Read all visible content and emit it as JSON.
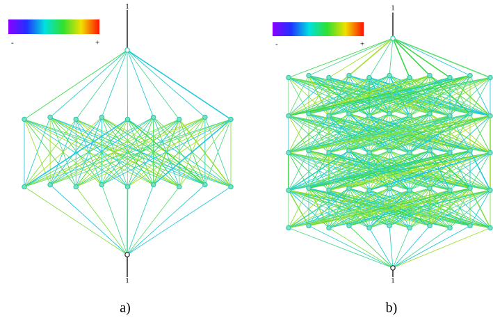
{
  "panels": [
    {
      "input_label": "1",
      "output_label": "1",
      "scale": {
        "min_label": "-",
        "max_label": "+"
      },
      "label": "a)"
    },
    {
      "input_label": "1",
      "output_label": "1",
      "scale": {
        "min_label": "-",
        "max_label": "+"
      },
      "label": "b)"
    }
  ]
}
